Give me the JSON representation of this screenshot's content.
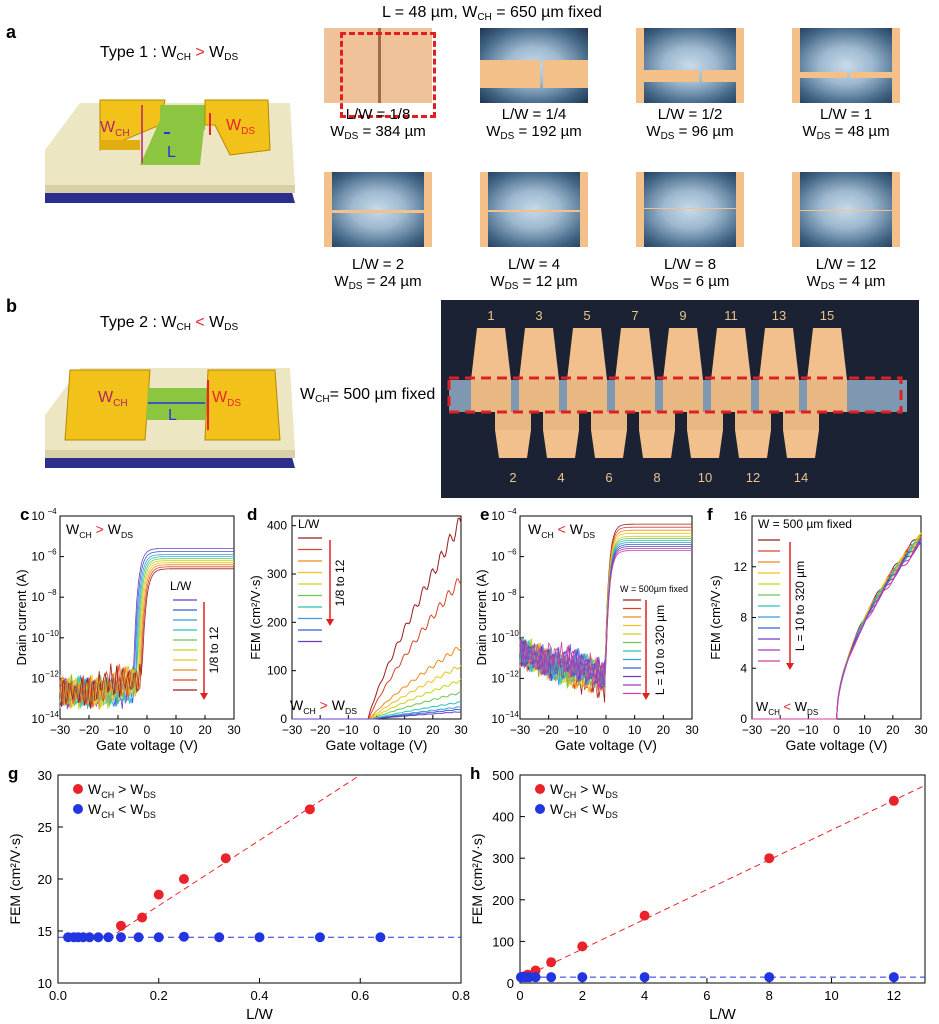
{
  "panel_a": {
    "letter": "a",
    "type_title": "Type 1 : W",
    "type_sub1": "CH",
    "type_op": ">",
    "type_w2": "W",
    "type_sub2": "DS",
    "header": "L = 48 µm, W",
    "header_sub": "CH",
    "header_tail": "= 650 µm fixed",
    "diagram_labels": {
      "wch": "W",
      "wch_sub": "CH",
      "wds": "W",
      "wds_sub": "DS",
      "l": "L"
    },
    "captions": [
      {
        "ratio": "L/W = 1/8",
        "wds": "= 384 µm"
      },
      {
        "ratio": "L/W = 1/4",
        "wds": "= 192 µm"
      },
      {
        "ratio": "L/W = 1/2",
        "wds": "= 96 µm"
      },
      {
        "ratio": "L/W = 1",
        "wds": "= 48 µm"
      },
      {
        "ratio": "L/W = 2",
        "wds": "= 24 µm"
      },
      {
        "ratio": "L/W = 4",
        "wds": "= 12 µm"
      },
      {
        "ratio": "L/W = 8",
        "wds": "= 6 µm"
      },
      {
        "ratio": "L/W = 12",
        "wds": "= 4 µm"
      }
    ],
    "caption_w": "W",
    "caption_sub": "DS"
  },
  "panel_b": {
    "letter": "b",
    "type_title": "Type 2 : W",
    "type_sub1": "CH",
    "type_op": "<",
    "type_w2": "W",
    "type_sub2": "DS",
    "fixed": "= 500 µm fixed",
    "fixed_w": "W",
    "fixed_sub": "CH",
    "diagram_labels": {
      "wch": "W",
      "wch_sub": "CH",
      "wds": "W",
      "wds_sub": "DS",
      "l": "L"
    },
    "top_numbers": [
      "1",
      "3",
      "5",
      "7",
      "9",
      "11",
      "13",
      "15"
    ],
    "bottom_numbers": [
      "2",
      "4",
      "6",
      "8",
      "10",
      "12",
      "14"
    ]
  },
  "colors": {
    "red": "#e8242a",
    "blue": "#2235e0",
    "gold": "#f3c21a",
    "green": "#8cc540",
    "dash_red": "#e02020"
  },
  "chart_data": [
    {
      "id": "c",
      "letter": "c",
      "type": "line",
      "xlabel": "Gate voltage (V)",
      "ylabel": "Drain current (A)",
      "xlim": [
        -30,
        30
      ],
      "ylim_log10": [
        -14,
        -4
      ],
      "scale": "log",
      "xticks": [
        "−30",
        "−20",
        "−10",
        "0",
        "10",
        "20",
        "30"
      ],
      "yticks": [
        "10",
        "10",
        "10",
        "10",
        "10",
        "10"
      ],
      "ytick_exp": [
        "−14",
        "−12",
        "−10",
        "−8",
        "−6",
        "−4"
      ],
      "label": "W",
      "label_sub1": "CH",
      "label_op": ">",
      "label_w2": "W",
      "label_sub2": "DS",
      "legend_title": "L/W",
      "arrow_text": "1/8 to 12",
      "series_count": 10,
      "on_current_log10": [
        -5.6,
        -5.75,
        -5.9,
        -6.0,
        -6.1,
        -6.2,
        -6.3,
        -6.4,
        -6.5,
        -6.6
      ],
      "threshold_v": [
        -4.5,
        -4.2,
        -3.9,
        -3.6,
        -3.3,
        -3.0,
        -2.7,
        -2.4,
        -2.1,
        -1.8
      ]
    },
    {
      "id": "d",
      "letter": "d",
      "type": "line",
      "xlabel": "Gate voltage (V)",
      "ylabel": "FEM (cm²/V·s)",
      "xlim": [
        -30,
        30
      ],
      "ylim": [
        0,
        420
      ],
      "xticks": [
        "−30",
        "−20",
        "−10",
        "0",
        "10",
        "20",
        "30"
      ],
      "yticks": [
        "0",
        "100",
        "200",
        "300",
        "400"
      ],
      "label": "W",
      "label_sub1": "CH",
      "label_op": ">",
      "label_w2": "W",
      "label_sub2": "DS",
      "legend_title": "L/W",
      "arrow_text": "1/8 to 12",
      "series_count": 10,
      "max_values": [
        410,
        290,
        150,
        110,
        80,
        55,
        35,
        25,
        20,
        15
      ]
    },
    {
      "id": "e",
      "letter": "e",
      "type": "line",
      "xlabel": "Gate voltage (V)",
      "ylabel": "Drain current (A)",
      "xlim": [
        -30,
        30
      ],
      "ylim_log10": [
        -14,
        -4
      ],
      "scale": "log",
      "xticks": [
        "−30",
        "−20",
        "−10",
        "0",
        "10",
        "20",
        "30"
      ],
      "yticks": [
        "10",
        "10",
        "10",
        "10",
        "10",
        "10"
      ],
      "ytick_exp": [
        "−14",
        "−12",
        "−10",
        "−8",
        "−6",
        "−4"
      ],
      "label": "W",
      "label_sub1": "CH",
      "label_op": "<",
      "label_w2": "W",
      "label_sub2": "DS",
      "legend_title": "W = 500µm fixed",
      "arrow_text": "L = 10 to 320 µm",
      "series_count": 12,
      "on_current_log10": [
        -4.4,
        -4.55,
        -4.7,
        -4.85,
        -5.0,
        -5.1,
        -5.2,
        -5.3,
        -5.4,
        -5.5,
        -5.6,
        -5.7
      ]
    },
    {
      "id": "f",
      "letter": "f",
      "type": "line",
      "xlabel": "Gate voltage (V)",
      "ylabel": "FEM (cm²/V·s)",
      "xlim": [
        -30,
        30
      ],
      "ylim": [
        0,
        16
      ],
      "xticks": [
        "−30",
        "−20",
        "−10",
        "0",
        "10",
        "20",
        "30"
      ],
      "yticks": [
        "0",
        "4",
        "8",
        "12",
        "16"
      ],
      "label": "W",
      "label_sub1": "CH",
      "label_op": "<",
      "label_w2": "W",
      "label_sub2": "DS",
      "legend_title": "W = 500 µm fixed",
      "arrow_text": "L = 10 to 320 µm",
      "series_count": 12,
      "max_values": [
        14.6,
        14.5,
        14.5,
        14.4,
        14.4,
        14.3,
        14.3,
        14.2,
        14.1,
        14.0,
        13.9,
        13.8
      ]
    },
    {
      "id": "g",
      "letter": "g",
      "type": "scatter",
      "xlabel": "L/W",
      "ylabel": "FEM (cm²/V·s)",
      "xlim": [
        0,
        0.8
      ],
      "ylim": [
        10,
        30
      ],
      "xticks": [
        "0.0",
        "0.2",
        "0.4",
        "0.6",
        "0.8"
      ],
      "yticks": [
        "10",
        "15",
        "20",
        "25",
        "30"
      ],
      "legend_placement": "top-left",
      "series": [
        {
          "name": "W",
          "name_sub1": "CH",
          "name_op": ">",
          "name_w2": "W",
          "name_sub2": "DS",
          "color": "#e8242a",
          "x": [
            0.125,
            0.167,
            0.2,
            0.25,
            0.333,
            0.5
          ],
          "y": [
            15.5,
            16.3,
            18.5,
            20.0,
            22.0,
            26.7
          ],
          "fit": [
            [
              0.1,
              14.3
            ],
            [
              0.6,
              30.0
            ]
          ]
        },
        {
          "name": "W",
          "name_sub1": "CH",
          "name_op": "<",
          "name_w2": "W",
          "name_sub2": "DS",
          "color": "#2235e0",
          "x": [
            0.02,
            0.03125,
            0.04,
            0.05,
            0.0625,
            0.08,
            0.1,
            0.125,
            0.16,
            0.2,
            0.25,
            0.32,
            0.4,
            0.52,
            0.64
          ],
          "y": [
            14.4,
            14.4,
            14.4,
            14.4,
            14.4,
            14.4,
            14.4,
            14.4,
            14.4,
            14.4,
            14.45,
            14.4,
            14.4,
            14.4,
            14.4
          ],
          "fit": [
            [
              0.0,
              14.4
            ],
            [
              0.8,
              14.4
            ]
          ]
        }
      ]
    },
    {
      "id": "h",
      "letter": "h",
      "type": "scatter",
      "xlabel": "L/W",
      "ylabel": "FEM (cm²/V·s)",
      "xlim": [
        0,
        13
      ],
      "ylim": [
        0,
        500
      ],
      "xticks": [
        "0",
        "2",
        "4",
        "6",
        "8",
        "10",
        "12"
      ],
      "yticks": [
        "0",
        "100",
        "200",
        "300",
        "400",
        "500"
      ],
      "legend_placement": "top-left",
      "series": [
        {
          "name": "W",
          "name_sub1": "CH",
          "name_op": ">",
          "name_w2": "W",
          "name_sub2": "DS",
          "color": "#e8242a",
          "x": [
            0.125,
            0.25,
            0.5,
            1,
            2,
            4,
            8,
            12
          ],
          "y": [
            16,
            20,
            30,
            50,
            88,
            162,
            300,
            438
          ],
          "fit": [
            [
              0,
              10
            ],
            [
              13,
              475
            ]
          ]
        },
        {
          "name": "W",
          "name_sub1": "CH",
          "name_op": "<",
          "name_w2": "W",
          "name_sub2": "DS",
          "color": "#2235e0",
          "x": [
            0.03,
            0.1,
            0.2,
            0.3,
            0.5,
            1,
            2,
            4,
            8,
            12
          ],
          "y": [
            14,
            14,
            14,
            14,
            14,
            14,
            14,
            14,
            14,
            14
          ],
          "fit": [
            [
              0,
              14
            ],
            [
              13,
              14
            ]
          ]
        }
      ]
    }
  ]
}
